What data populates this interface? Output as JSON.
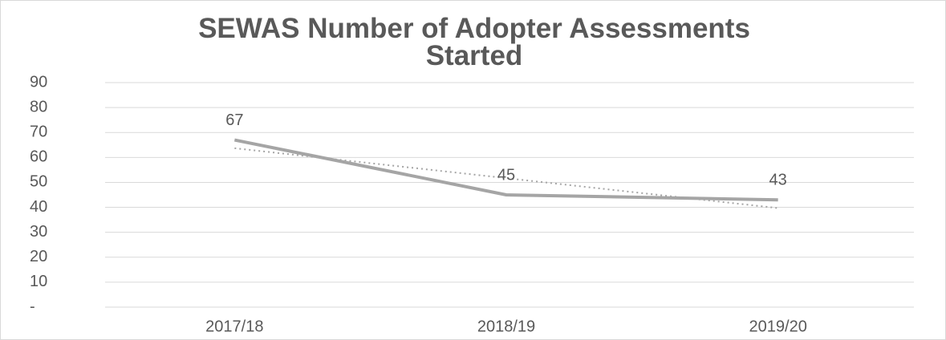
{
  "chart_data": {
    "type": "line",
    "title": "SEWAS Number of Adopter Assessments Started",
    "categories": [
      "2017/18",
      "2018/19",
      "2019/20"
    ],
    "series": [
      {
        "color": "#a5a5a5",
        "values": [
          67,
          45,
          43
        ]
      }
    ],
    "trendline": {
      "color": "#a5a5a5",
      "style": "dotted",
      "values": [
        63.7,
        51.7,
        39.7
      ]
    },
    "ylim": [
      0,
      90
    ],
    "yticks": [
      {
        "value": 0,
        "label": "-"
      },
      10,
      20,
      30,
      40,
      50,
      60,
      70,
      80,
      90
    ],
    "grid": true
  }
}
